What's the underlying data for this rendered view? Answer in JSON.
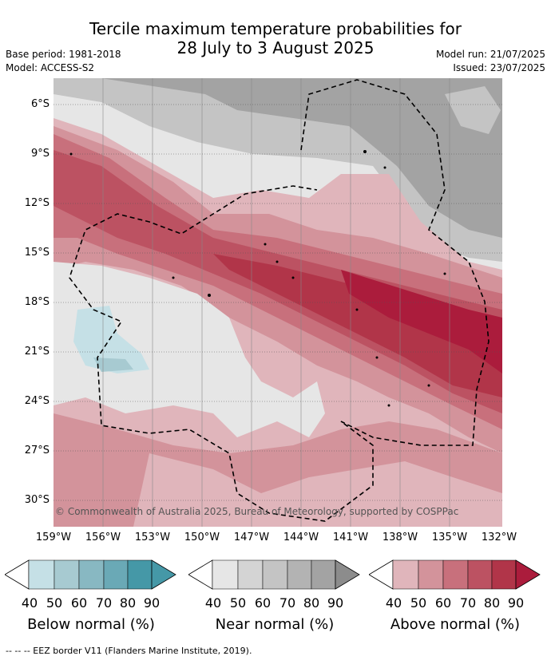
{
  "header": {
    "title_line1": "Tercile maximum temperature probabilities for",
    "title_line2": "28 July to 3 August 2025",
    "base_period": "Base period: 1981-2018",
    "model": "Model: ACCESS-S2",
    "model_run": "Model run: 21/07/2025",
    "issued": "Issued: 23/07/2025"
  },
  "map": {
    "lat_labels": [
      "6°S",
      "9°S",
      "12°S",
      "15°S",
      "18°S",
      "21°S",
      "24°S",
      "27°S",
      "30°S"
    ],
    "lon_labels": [
      "159°W",
      "156°W",
      "153°W",
      "150°W",
      "147°W",
      "144°W",
      "141°W",
      "138°W",
      "135°W",
      "132°W"
    ],
    "copyright": "© Commonwealth of Australia 2025, Bureau of Meteorology, supported by COSPPac"
  },
  "legend": {
    "ticks": [
      "40",
      "50",
      "60",
      "70",
      "80",
      "90"
    ],
    "below": {
      "title": "Below normal (%)",
      "colors": [
        "#ffffff",
        "#c5e0e6",
        "#a7cad1",
        "#88b8c2",
        "#6aa9b6",
        "#4598a7"
      ]
    },
    "near": {
      "title": "Near normal (%)",
      "colors": [
        "#ffffff",
        "#e6e6e6",
        "#d4d4d4",
        "#c4c4c4",
        "#b3b3b3",
        "#a3a3a3",
        "#8c8c8c"
      ]
    },
    "above": {
      "title": "Above normal (%)",
      "colors": [
        "#ffffff",
        "#e0b5bb",
        "#d3939b",
        "#c8707c",
        "#bc5262",
        "#b13549",
        "#ab1c3c"
      ]
    }
  },
  "footer": "-- -- -- EEZ border V11 (Flanders Marine Institute, 2019)."
}
